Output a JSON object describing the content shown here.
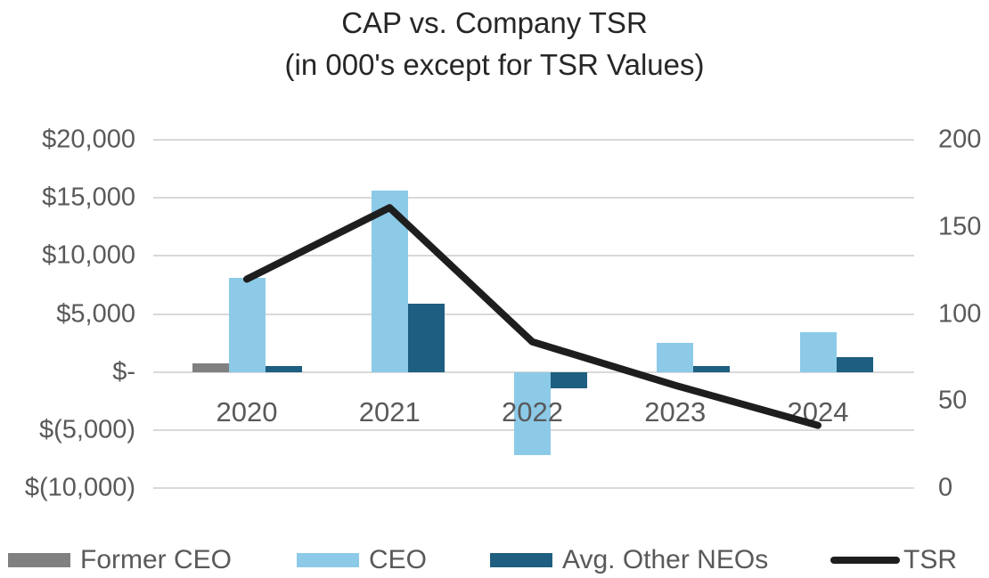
{
  "title": {
    "line1": "CAP vs. Company TSR",
    "line2": "(in 000's except for TSR Values)"
  },
  "chart_data": {
    "type": "combo-bar-line",
    "title": "CAP vs. Company TSR (in 000's except for TSR Values)",
    "categories": [
      "2020",
      "2021",
      "2022",
      "2023",
      "2024"
    ],
    "series": [
      {
        "name": "Former CEO",
        "chart": "bar",
        "axis": "left",
        "color": "#808080",
        "values": [
          750,
          null,
          null,
          null,
          null
        ]
      },
      {
        "name": "CEO",
        "chart": "bar",
        "axis": "left",
        "color": "#8CCAE8",
        "values": [
          8100,
          15600,
          -7200,
          2500,
          3400
        ]
      },
      {
        "name": "Avg. Other NEOs",
        "chart": "bar",
        "axis": "left",
        "color": "#1E5E80",
        "values": [
          500,
          5900,
          -1400,
          500,
          1300
        ]
      },
      {
        "name": "TSR",
        "chart": "line",
        "axis": "right",
        "color": "#1E1E1E",
        "values": [
          120,
          161,
          84,
          59,
          36
        ]
      }
    ],
    "left_axis": {
      "min": -10000,
      "max": 20000,
      "tick_values": [
        20000,
        15000,
        10000,
        5000,
        0,
        -5000,
        -10000
      ],
      "tick_labels": [
        "$20,000",
        "$15,000",
        "$10,000",
        "$5,000",
        "$-",
        "$(5,000)",
        "$(10,000)"
      ]
    },
    "right_axis": {
      "min": 0,
      "max": 200,
      "tick_values": [
        200,
        150,
        100,
        50,
        0
      ],
      "tick_labels": [
        "200",
        "150",
        "100",
        "50",
        "0"
      ]
    },
    "grid": true,
    "legend_position": "bottom",
    "legend": [
      "Former CEO",
      "CEO",
      "Avg. Other NEOs",
      "TSR"
    ],
    "colors": {
      "gridline": "#D9D9D9",
      "axis_text": "#595959",
      "title_text": "#262626"
    }
  }
}
